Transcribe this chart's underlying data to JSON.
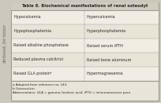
{
  "title": "Table 8. Biochemical manifestations of renal osteodyt",
  "col1": [
    "Hypocalcemia",
    "Hypophosphatemia",
    "Raised alkaline phosphatase",
    "Reduced plasma calcitriol",
    "Raised GLA proteinᵇ"
  ],
  "col2": [
    "Hypercalcemia",
    "Hyperphosphatemia",
    "Raised serum iPTH",
    "Raised bone aluminum",
    "Hypermagnesemia"
  ],
  "footnote1": "a Adapted from reference no. 143.",
  "footnote2": "b Osteocalcin.",
  "footnote3": "Abbreviations: GLA = gamma linolenic acid; iPTH = immunoreactive para",
  "side_text": "Archived, for histor",
  "bg_color": "#d8d4c8",
  "table_bg": "#f5f3ee",
  "header_bg": "#d0ccc0",
  "outer_bg": "#ccc8bc",
  "border_color": "#999990",
  "text_color": "#2a2a2a"
}
